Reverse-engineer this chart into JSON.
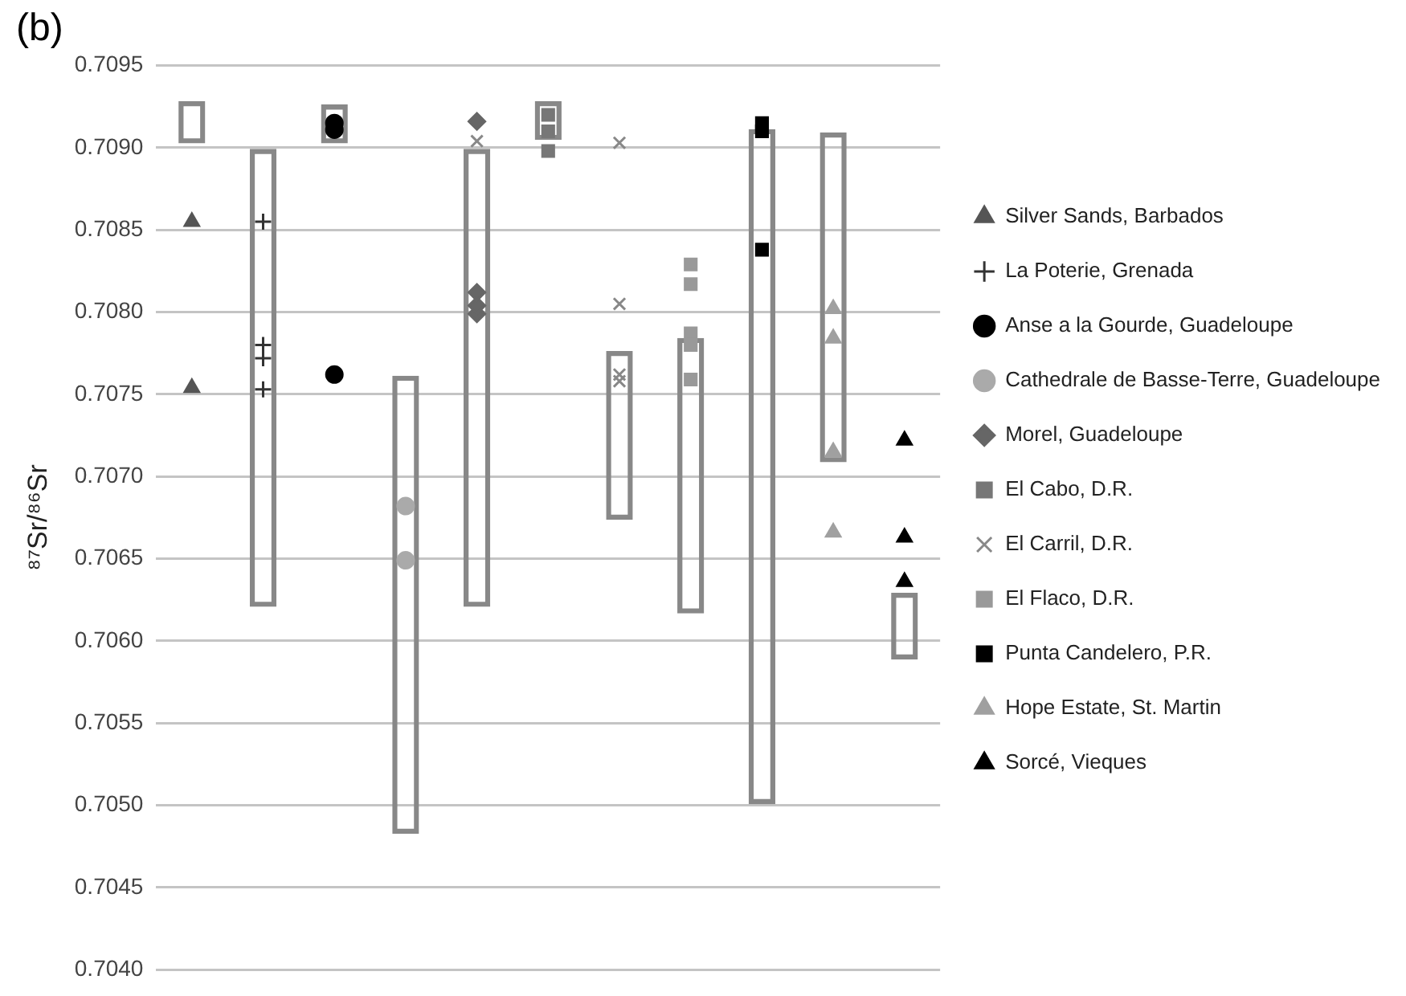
{
  "chart_data": {
    "type": "bar",
    "title": "(b)",
    "ylabel": "⁸⁷Sr/⁸⁶Sr",
    "categories": [
      null,
      null,
      null,
      null,
      null,
      null,
      null,
      null,
      null,
      null,
      null
    ],
    "tick_labels": "y",
    "grid": "y",
    "legend": "right",
    "ylim": [
      0.704,
      0.7095
    ],
    "yticks": [
      {
        "value": 0.704,
        "label": "0.7040"
      },
      {
        "value": 0.7045,
        "label": "0.7045"
      },
      {
        "value": 0.705,
        "label": "0.7050"
      },
      {
        "value": 0.7055,
        "label": "0.7055"
      },
      {
        "value": 0.706,
        "label": "0.7060"
      },
      {
        "value": 0.7065,
        "label": "0.7065"
      },
      {
        "value": 0.707,
        "label": "0.7070"
      },
      {
        "value": 0.7075,
        "label": "0.7075"
      },
      {
        "value": 0.708,
        "label": "0.7080"
      },
      {
        "value": 0.7085,
        "label": "0.7085"
      },
      {
        "value": 0.709,
        "label": "0.7090"
      },
      {
        "value": 0.7095,
        "label": "0.7095"
      }
    ],
    "series": [
      {
        "color": "#888888",
        "base": [
          0.70903,
          0.70621,
          0.70903,
          0.70483,
          0.70621,
          0.70905,
          0.70674,
          0.70617,
          0.70501,
          0.70709,
          0.70589
        ],
        "values": [
          0.00025,
          0.00278,
          0.00023,
          0.00278,
          0.00278,
          0.00023,
          0.00102,
          0.00167,
          0.0041,
          0.002,
          0.0004
        ]
      },
      {
        "type": "scatter",
        "name": "Silver Sands, Barbados",
        "color": "#555555",
        "marker": "triangle",
        "values": [
          0.70855,
          null,
          null,
          null,
          null,
          null,
          null,
          null,
          null,
          null,
          null
        ]
      },
      {
        "type": "scatter",
        "color": "#555555",
        "marker": "triangle",
        "values": [
          0.70754,
          null,
          null,
          null,
          null,
          null,
          null,
          null,
          null,
          null,
          null
        ]
      },
      {
        "type": "scatter",
        "name": "La Poterie, Grenada",
        "color": "#333333",
        "marker": "cross",
        "values": [
          null,
          0.70855,
          null,
          null,
          null,
          null,
          null,
          null,
          null,
          null,
          null
        ]
      },
      {
        "type": "scatter",
        "color": "#333333",
        "marker": "cross",
        "values": [
          null,
          0.7078,
          null,
          null,
          null,
          null,
          null,
          null,
          null,
          null,
          null
        ]
      },
      {
        "type": "scatter",
        "color": "#333333",
        "marker": "cross",
        "values": [
          null,
          0.70772,
          null,
          null,
          null,
          null,
          null,
          null,
          null,
          null,
          null
        ]
      },
      {
        "type": "scatter",
        "color": "#333333",
        "marker": "cross",
        "values": [
          null,
          0.70753,
          null,
          null,
          null,
          null,
          null,
          null,
          null,
          null,
          null
        ]
      },
      {
        "type": "scatter",
        "name": "Anse a la Gourde, Guadeloupe",
        "color": "#000000",
        "marker": "circle",
        "values": [
          null,
          null,
          0.70915,
          null,
          null,
          null,
          null,
          null,
          null,
          null,
          null
        ]
      },
      {
        "type": "scatter",
        "color": "#000000",
        "marker": "circle",
        "values": [
          null,
          null,
          0.70911,
          null,
          null,
          null,
          null,
          null,
          null,
          null,
          null
        ]
      },
      {
        "type": "scatter",
        "color": "#000000",
        "marker": "circle",
        "values": [
          null,
          null,
          0.70762,
          null,
          null,
          null,
          null,
          null,
          null,
          null,
          null
        ]
      },
      {
        "type": "scatter",
        "name": "Cathedrale de Basse-Terre, Guadeloupe",
        "color": "#aaaaaa",
        "marker": "circle",
        "values": [
          null,
          null,
          null,
          0.70682,
          null,
          null,
          null,
          null,
          null,
          null,
          null
        ]
      },
      {
        "type": "scatter",
        "color": "#aaaaaa",
        "marker": "circle",
        "values": [
          null,
          null,
          null,
          0.70649,
          null,
          null,
          null,
          null,
          null,
          null,
          null
        ]
      },
      {
        "type": "scatter",
        "name": "Morel, Guadeloupe",
        "color": "#666666",
        "marker": "diamond",
        "values": [
          null,
          null,
          null,
          null,
          0.70916,
          null,
          null,
          null,
          null,
          null,
          null
        ]
      },
      {
        "type": "scatter",
        "color": "#666666",
        "marker": "diamond",
        "values": [
          null,
          null,
          null,
          null,
          0.70812,
          null,
          null,
          null,
          null,
          null,
          null
        ]
      },
      {
        "type": "scatter",
        "color": "#666666",
        "marker": "diamond",
        "values": [
          null,
          null,
          null,
          null,
          0.70804,
          null,
          null,
          null,
          null,
          null,
          null
        ]
      },
      {
        "type": "scatter",
        "color": "#666666",
        "marker": "diamond",
        "values": [
          null,
          null,
          null,
          null,
          0.70799,
          null,
          null,
          null,
          null,
          null,
          null
        ]
      },
      {
        "type": "scatter",
        "name": "El Cabo, D.R.",
        "color": "#777777",
        "marker": "square",
        "values": [
          null,
          null,
          null,
          null,
          null,
          0.7092,
          null,
          null,
          null,
          null,
          null
        ]
      },
      {
        "type": "scatter",
        "color": "#777777",
        "marker": "square",
        "values": [
          null,
          null,
          null,
          null,
          null,
          0.7091,
          null,
          null,
          null,
          null,
          null
        ]
      },
      {
        "type": "scatter",
        "color": "#777777",
        "marker": "square",
        "values": [
          null,
          null,
          null,
          null,
          null,
          0.70898,
          null,
          null,
          null,
          null,
          null
        ]
      },
      {
        "type": "scatter",
        "name": "El Carril, D.R.",
        "color": "#888888",
        "marker": "x",
        "values": [
          null,
          null,
          null,
          null,
          0.70904,
          null,
          0.70903,
          null,
          null,
          null,
          null
        ]
      },
      {
        "type": "scatter",
        "color": "#888888",
        "marker": "x",
        "values": [
          null,
          null,
          null,
          null,
          null,
          null,
          0.70805,
          null,
          null,
          null,
          null
        ]
      },
      {
        "type": "scatter",
        "color": "#888888",
        "marker": "x",
        "values": [
          null,
          null,
          null,
          null,
          null,
          null,
          0.70762,
          null,
          null,
          null,
          null
        ]
      },
      {
        "type": "scatter",
        "color": "#888888",
        "marker": "x",
        "values": [
          null,
          null,
          null,
          null,
          null,
          null,
          0.70758,
          null,
          null,
          null,
          null
        ]
      },
      {
        "type": "scatter",
        "name": "El Flaco, D.R.",
        "color": "#999999",
        "marker": "square",
        "values": [
          null,
          null,
          null,
          null,
          null,
          null,
          null,
          0.70829,
          null,
          null,
          null
        ]
      },
      {
        "type": "scatter",
        "color": "#999999",
        "marker": "square",
        "values": [
          null,
          null,
          null,
          null,
          null,
          null,
          null,
          0.70817,
          null,
          null,
          null
        ]
      },
      {
        "type": "scatter",
        "color": "#999999",
        "marker": "square",
        "values": [
          null,
          null,
          null,
          null,
          null,
          null,
          null,
          0.70787,
          null,
          null,
          null
        ]
      },
      {
        "type": "scatter",
        "color": "#999999",
        "marker": "square",
        "values": [
          null,
          null,
          null,
          null,
          null,
          null,
          null,
          0.7078,
          null,
          null,
          null
        ]
      },
      {
        "type": "scatter",
        "color": "#999999",
        "marker": "square",
        "values": [
          null,
          null,
          null,
          null,
          null,
          null,
          null,
          0.70759,
          null,
          null,
          null
        ]
      },
      {
        "type": "scatter",
        "name": "Punta Candelero, P.R.",
        "color": "#000000",
        "marker": "square",
        "values": [
          null,
          null,
          null,
          null,
          null,
          null,
          null,
          null,
          0.70915,
          null,
          null
        ]
      },
      {
        "type": "scatter",
        "color": "#000000",
        "marker": "square",
        "values": [
          null,
          null,
          null,
          null,
          null,
          null,
          null,
          null,
          0.7091,
          null,
          null
        ]
      },
      {
        "type": "scatter",
        "color": "#000000",
        "marker": "square",
        "values": [
          null,
          null,
          null,
          null,
          null,
          null,
          null,
          null,
          0.70838,
          null,
          null
        ]
      },
      {
        "type": "scatter",
        "name": "Hope Estate, St. Martin",
        "color": "#a0a0a0",
        "marker": "triangle",
        "values": [
          null,
          null,
          null,
          null,
          null,
          null,
          null,
          null,
          null,
          0.70802,
          null
        ]
      },
      {
        "type": "scatter",
        "color": "#a0a0a0",
        "marker": "triangle",
        "values": [
          null,
          null,
          null,
          null,
          null,
          null,
          null,
          null,
          null,
          0.70784,
          null
        ]
      },
      {
        "type": "scatter",
        "color": "#a0a0a0",
        "marker": "triangle",
        "values": [
          null,
          null,
          null,
          null,
          null,
          null,
          null,
          null,
          null,
          0.70715,
          null
        ]
      },
      {
        "type": "scatter",
        "color": "#a0a0a0",
        "marker": "triangle",
        "values": [
          null,
          null,
          null,
          null,
          null,
          null,
          null,
          null,
          null,
          0.70666,
          null
        ]
      },
      {
        "type": "scatter",
        "name": "Sorcé, Vieques",
        "color": "#000000",
        "marker": "triangle",
        "values": [
          null,
          null,
          null,
          null,
          null,
          null,
          null,
          null,
          null,
          null,
          0.70722
        ]
      },
      {
        "type": "scatter",
        "color": "#000000",
        "marker": "triangle",
        "values": [
          null,
          null,
          null,
          null,
          null,
          null,
          null,
          null,
          null,
          null,
          0.70663
        ]
      },
      {
        "type": "scatter",
        "color": "#000000",
        "marker": "triangle",
        "values": [
          null,
          null,
          null,
          null,
          null,
          null,
          null,
          null,
          null,
          null,
          0.70636
        ]
      }
    ]
  }
}
